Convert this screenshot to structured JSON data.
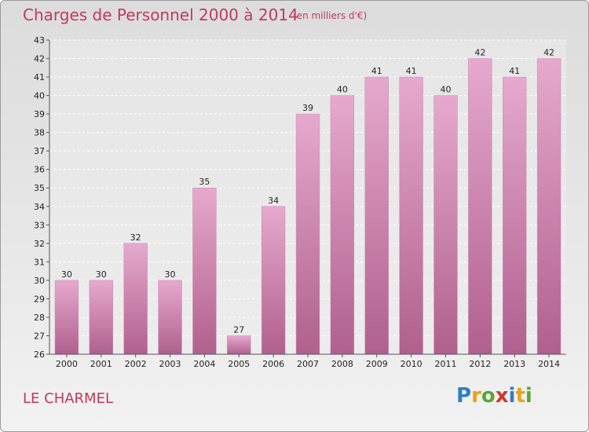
{
  "chart_data": {
    "type": "bar",
    "title": "Charges de Personnel 2000 à 2014",
    "subtitle": "(en milliers d'€)",
    "categories": [
      "2000",
      "2001",
      "2002",
      "2003",
      "2004",
      "2005",
      "2006",
      "2007",
      "2008",
      "2009",
      "2010",
      "2011",
      "2012",
      "2013",
      "2014"
    ],
    "values": [
      30,
      30,
      32,
      30,
      35,
      27,
      34,
      39,
      40,
      41,
      41,
      40,
      42,
      41,
      42
    ],
    "ylim": [
      26,
      43
    ],
    "yticks": [
      26,
      27,
      28,
      29,
      30,
      31,
      32,
      33,
      34,
      35,
      36,
      37,
      38,
      39,
      40,
      41,
      42,
      43
    ],
    "grid": true,
    "xlabel": "",
    "ylabel": ""
  },
  "footer": {
    "commune": "LE CHARMEL"
  },
  "logo": {
    "letters": [
      "P",
      "r",
      "o",
      "x",
      "i",
      "t",
      "i"
    ],
    "colors": [
      "#2d7fc4",
      "#e9a21a",
      "#5aa637",
      "#d8342c",
      "#2d7fc4",
      "#e9a21a",
      "#5aa637"
    ]
  },
  "colors": {
    "bar_top": "#e6a9cd",
    "bar_bottom": "#b0608d",
    "title": "#c03a5a"
  }
}
